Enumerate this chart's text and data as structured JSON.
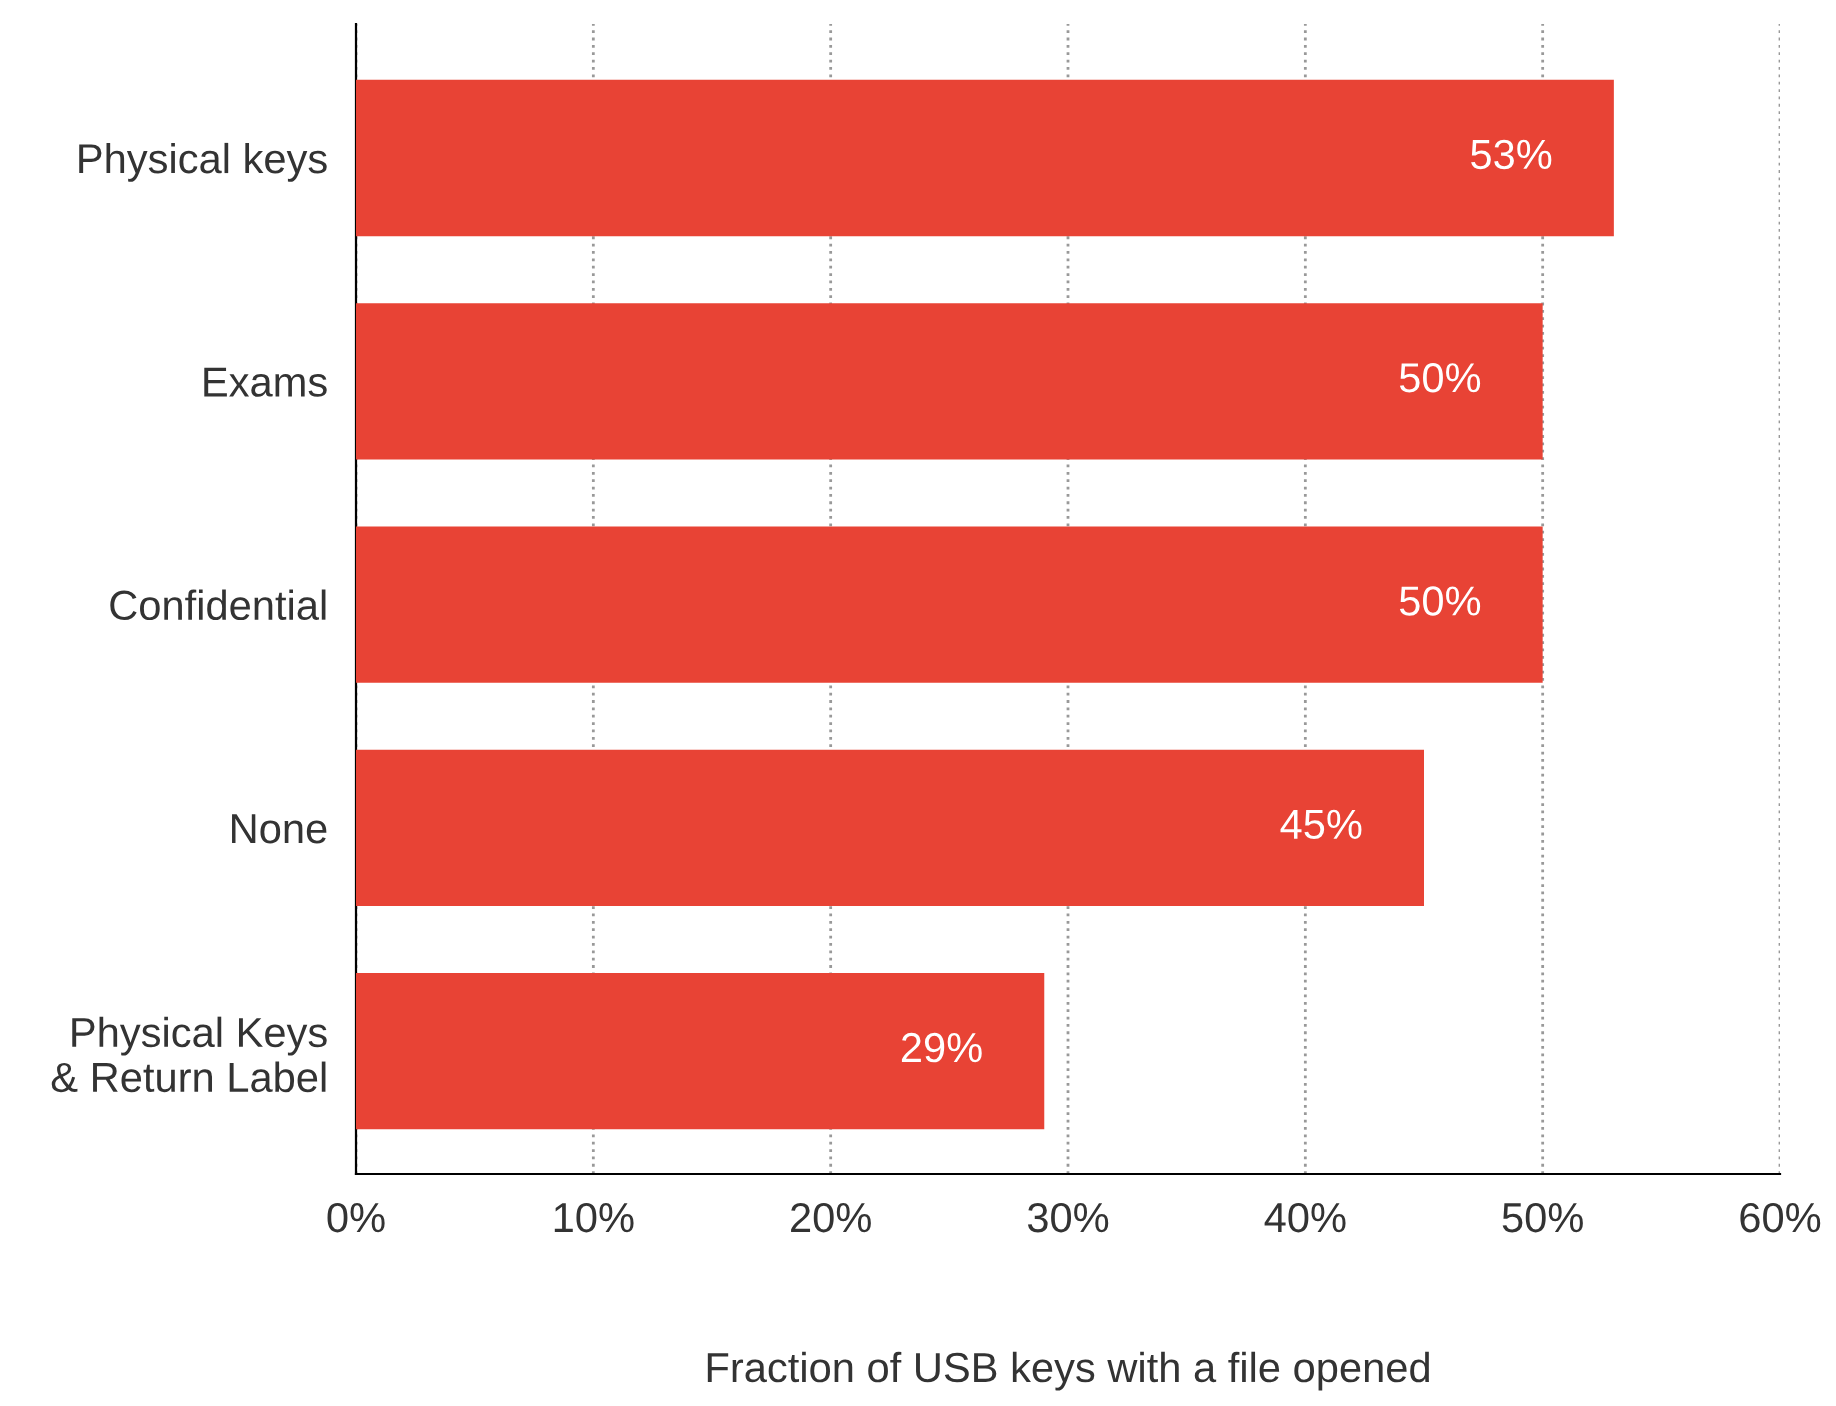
{
  "chart_data": {
    "type": "bar",
    "orientation": "horizontal",
    "categories": [
      "Physical keys",
      "Exams",
      "Confidential",
      "None",
      "Physical Keys\n& Return Label"
    ],
    "values": [
      53,
      50,
      50,
      45,
      29
    ],
    "value_labels": [
      "53%",
      "50%",
      "50%",
      "45%",
      "29%"
    ],
    "color": "#e84335",
    "xlabel": "Fraction of USB keys with a file opened",
    "xlim": [
      0,
      60
    ],
    "xticks": [
      {
        "value": 0,
        "label": "0%"
      },
      {
        "value": 10,
        "label": "10%"
      },
      {
        "value": 20,
        "label": "20%"
      },
      {
        "value": 30,
        "label": "30%"
      },
      {
        "value": 40,
        "label": "40%"
      },
      {
        "value": 50,
        "label": "50%"
      },
      {
        "value": 60,
        "label": "60%"
      }
    ],
    "grid": "x"
  }
}
